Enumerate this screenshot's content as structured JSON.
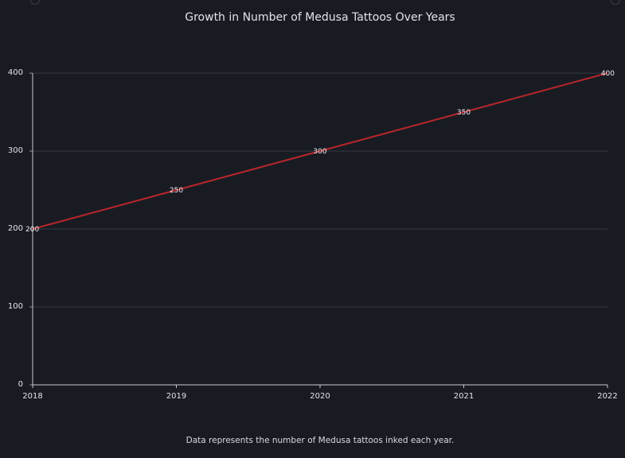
{
  "title": "Growth in Number of Medusa Tattoos Over Years",
  "caption": "Data represents the number of Medusa tattoos inked each year.",
  "colors": {
    "background": "#191b23",
    "line": "#b8262b",
    "grid": "#353843",
    "text": "#e3e4ea"
  },
  "chart_data": {
    "type": "line",
    "title": "Growth in Number of Medusa Tattoos Over Years",
    "xlabel": "",
    "ylabel": "",
    "x": [
      "2018",
      "2019",
      "2020",
      "2021",
      "2022"
    ],
    "series": [
      {
        "values": [
          200,
          250,
          300,
          350,
          400
        ]
      }
    ],
    "data_labels": [
      "200",
      "250",
      "300",
      "350",
      "400"
    ],
    "ylim": [
      0,
      400
    ],
    "yticks": [
      "0",
      "100",
      "200",
      "300",
      "400"
    ],
    "grid": true,
    "legend": "none"
  }
}
